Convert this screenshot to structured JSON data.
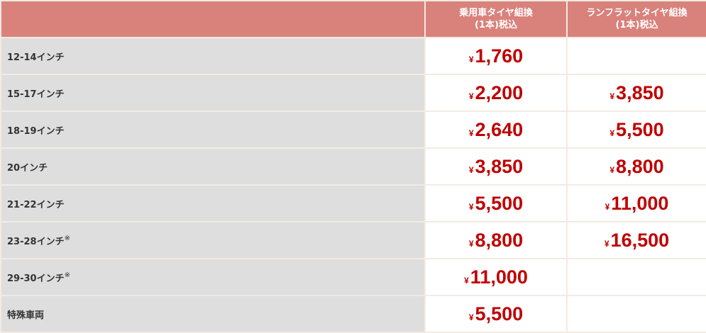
{
  "header": {
    "col0": "",
    "col1_line1": "乗用車タイヤ組換",
    "col1_line2": "(1本)税込",
    "col2_line1": "ランフラットタイヤ組換",
    "col2_line2": "(1本)税込"
  },
  "currency": "¥",
  "colors": {
    "header_bg": "#d9817b",
    "label_bg": "#dedede",
    "price": "#c00000"
  },
  "rows": [
    {
      "label": "12-14インチ",
      "note": "",
      "standard": "1,760",
      "runflat": ""
    },
    {
      "label": "15-17インチ",
      "note": "",
      "standard": "2,200",
      "runflat": "3,850"
    },
    {
      "label": "18-19インチ",
      "note": "",
      "standard": "2,640",
      "runflat": "5,500"
    },
    {
      "label": "20インチ",
      "note": "",
      "standard": "3,850",
      "runflat": "8,800"
    },
    {
      "label": "21-22インチ",
      "note": "",
      "standard": "5,500",
      "runflat": "11,000"
    },
    {
      "label": "23-28インチ",
      "note": "※",
      "standard": "8,800",
      "runflat": "16,500"
    },
    {
      "label": "29-30インチ",
      "note": "※",
      "standard": "11,000",
      "runflat": ""
    },
    {
      "label": "特殊車両",
      "note": "",
      "standard": "5,500",
      "runflat": ""
    }
  ]
}
